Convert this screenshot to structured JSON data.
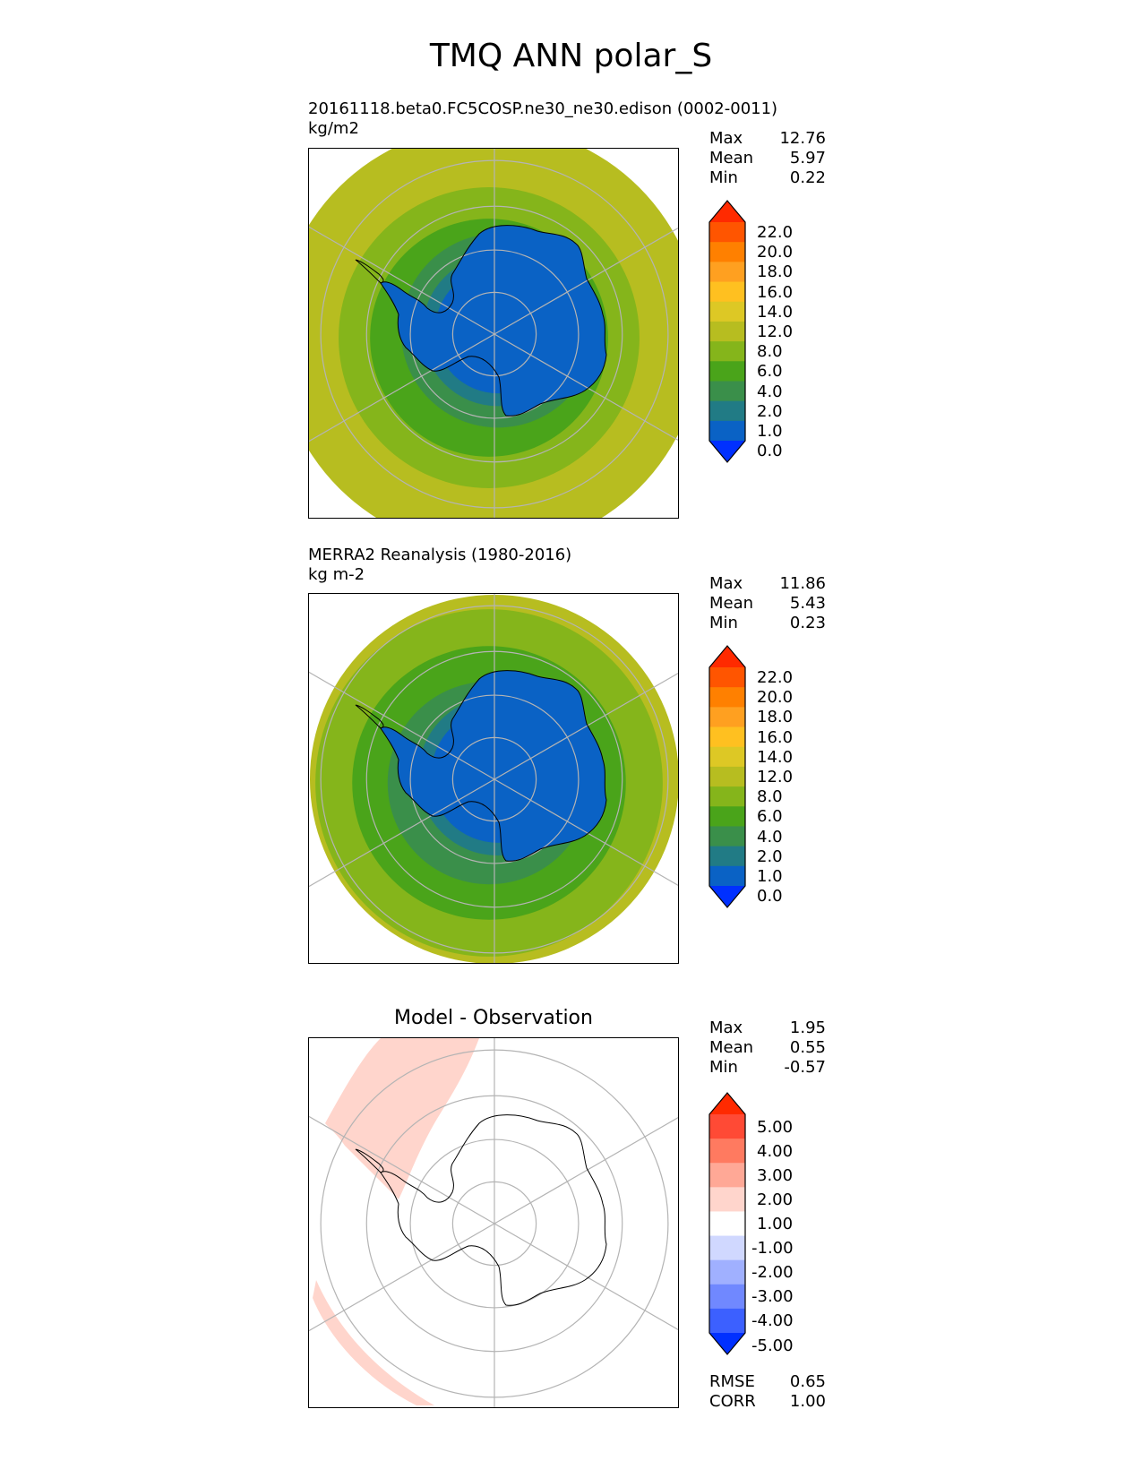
{
  "figure_title": "TMQ ANN polar_S",
  "panels": [
    {
      "title_line1": "20161118.beta0.FC5COSP.ne30_ne30.edison (0002-0011)",
      "title_line2": "kg/m2",
      "stats": [
        {
          "label": "Max",
          "value": "12.76"
        },
        {
          "label": "Mean",
          "value": "5.97"
        },
        {
          "label": "Min",
          "value": "0.22"
        }
      ],
      "colorbar": {
        "labels": [
          "22.0",
          "20.0",
          "18.0",
          "16.0",
          "14.0",
          "12.0",
          "8.0",
          "6.0",
          "4.0",
          "2.0",
          "1.0",
          "0.0"
        ],
        "colors": [
          "#ff2a00",
          "#ff5500",
          "#ff8000",
          "#ffa020",
          "#ffc020",
          "#ddc825",
          "#b7bd20",
          "#85b51b",
          "#4aa41a",
          "#3a8f4a",
          "#217b85",
          "#0a62c5",
          "#0030ff"
        ]
      },
      "field_levels": [
        {
          "lat": -40,
          "color": "#e6be20"
        },
        {
          "lat": -42,
          "color": "#b7bd20"
        },
        {
          "lat": -55,
          "color": "#85b51b"
        },
        {
          "lat": -62,
          "color": "#4aa41a"
        },
        {
          "lat": -67,
          "color": "#3a8f4a"
        },
        {
          "lat": -72,
          "color": "#217b85"
        },
        {
          "lat": -75,
          "color": "#0a62c5"
        }
      ]
    },
    {
      "title_line1": "MERRA2 Reanalysis (1980-2016)",
      "title_line2": "kg m-2",
      "stats": [
        {
          "label": "Max",
          "value": "11.86"
        },
        {
          "label": "Mean",
          "value": "5.43"
        },
        {
          "label": "Min",
          "value": "0.23"
        }
      ],
      "colorbar": {
        "labels": [
          "22.0",
          "20.0",
          "18.0",
          "16.0",
          "14.0",
          "12.0",
          "8.0",
          "6.0",
          "4.0",
          "2.0",
          "1.0",
          "0.0"
        ],
        "colors": [
          "#ff2a00",
          "#ff5500",
          "#ff8000",
          "#ffa020",
          "#ffc020",
          "#ddc825",
          "#b7bd20",
          "#85b51b",
          "#4aa41a",
          "#3a8f4a",
          "#217b85",
          "#0a62c5",
          "#0030ff"
        ]
      },
      "field_levels": [
        {
          "lat": -42,
          "color": "#b7bd20"
        },
        {
          "lat": -50,
          "color": "#85b51b"
        },
        {
          "lat": -58,
          "color": "#4aa41a"
        },
        {
          "lat": -66,
          "color": "#3a8f4a"
        },
        {
          "lat": -71,
          "color": "#217b85"
        },
        {
          "lat": -74,
          "color": "#0a62c5"
        }
      ]
    },
    {
      "title": "Model - Observation",
      "stats": [
        {
          "label": "Max",
          "value": "1.95"
        },
        {
          "label": "Mean",
          "value": "0.55"
        },
        {
          "label": "Min",
          "value": "-0.57"
        }
      ],
      "colorbar": {
        "labels": [
          "5.00",
          "4.00",
          "3.00",
          "2.00",
          "1.00",
          "-1.00",
          "-2.00",
          "-3.00",
          "-4.00",
          "-5.00"
        ],
        "colors": [
          "#ff2a00",
          "#ff4a35",
          "#ff7a60",
          "#ffa896",
          "#ffd5cc",
          "#ffffff",
          "#d0d8ff",
          "#a0b0ff",
          "#7088ff",
          "#3c60ff",
          "#0030ff"
        ]
      },
      "bottom_stats": [
        {
          "label": "RMSE",
          "value": "0.65"
        },
        {
          "label": "CORR",
          "value": "1.00"
        }
      ]
    }
  ],
  "map_style": {
    "grid_color": "#b4b4b4",
    "coast_color": "#000000",
    "background": "#ffffff",
    "diff_positive_color": "#ffd5cc"
  },
  "chart_data": {
    "type": "heatmap",
    "projection": "south polar stereographic",
    "variable": "TMQ",
    "season": "ANN",
    "region": "polar_S",
    "graticule": {
      "parallels": [
        -50,
        -60,
        -70,
        -80
      ],
      "meridians": [
        0,
        60,
        120,
        180,
        240,
        300
      ]
    },
    "panels": [
      {
        "name": "20161118.beta0.FC5COSP.ne30_ne30.edison (0002-0011)",
        "units": "kg/m2",
        "max": 12.76,
        "mean": 5.97,
        "min": 0.22,
        "levels": [
          0.0,
          1.0,
          2.0,
          4.0,
          6.0,
          8.0,
          12.0,
          14.0,
          16.0,
          18.0,
          20.0,
          22.0
        ]
      },
      {
        "name": "MERRA2 Reanalysis (1980-2016)",
        "units": "kg m-2",
        "max": 11.86,
        "mean": 5.43,
        "min": 0.23,
        "levels": [
          0.0,
          1.0,
          2.0,
          4.0,
          6.0,
          8.0,
          12.0,
          14.0,
          16.0,
          18.0,
          20.0,
          22.0
        ]
      },
      {
        "name": "Model - Observation",
        "max": 1.95,
        "mean": 0.55,
        "min": -0.57,
        "rmse": 0.65,
        "corr": 1.0,
        "levels": [
          -5.0,
          -4.0,
          -3.0,
          -2.0,
          -1.0,
          1.0,
          2.0,
          3.0,
          4.0,
          5.0
        ]
      }
    ]
  }
}
